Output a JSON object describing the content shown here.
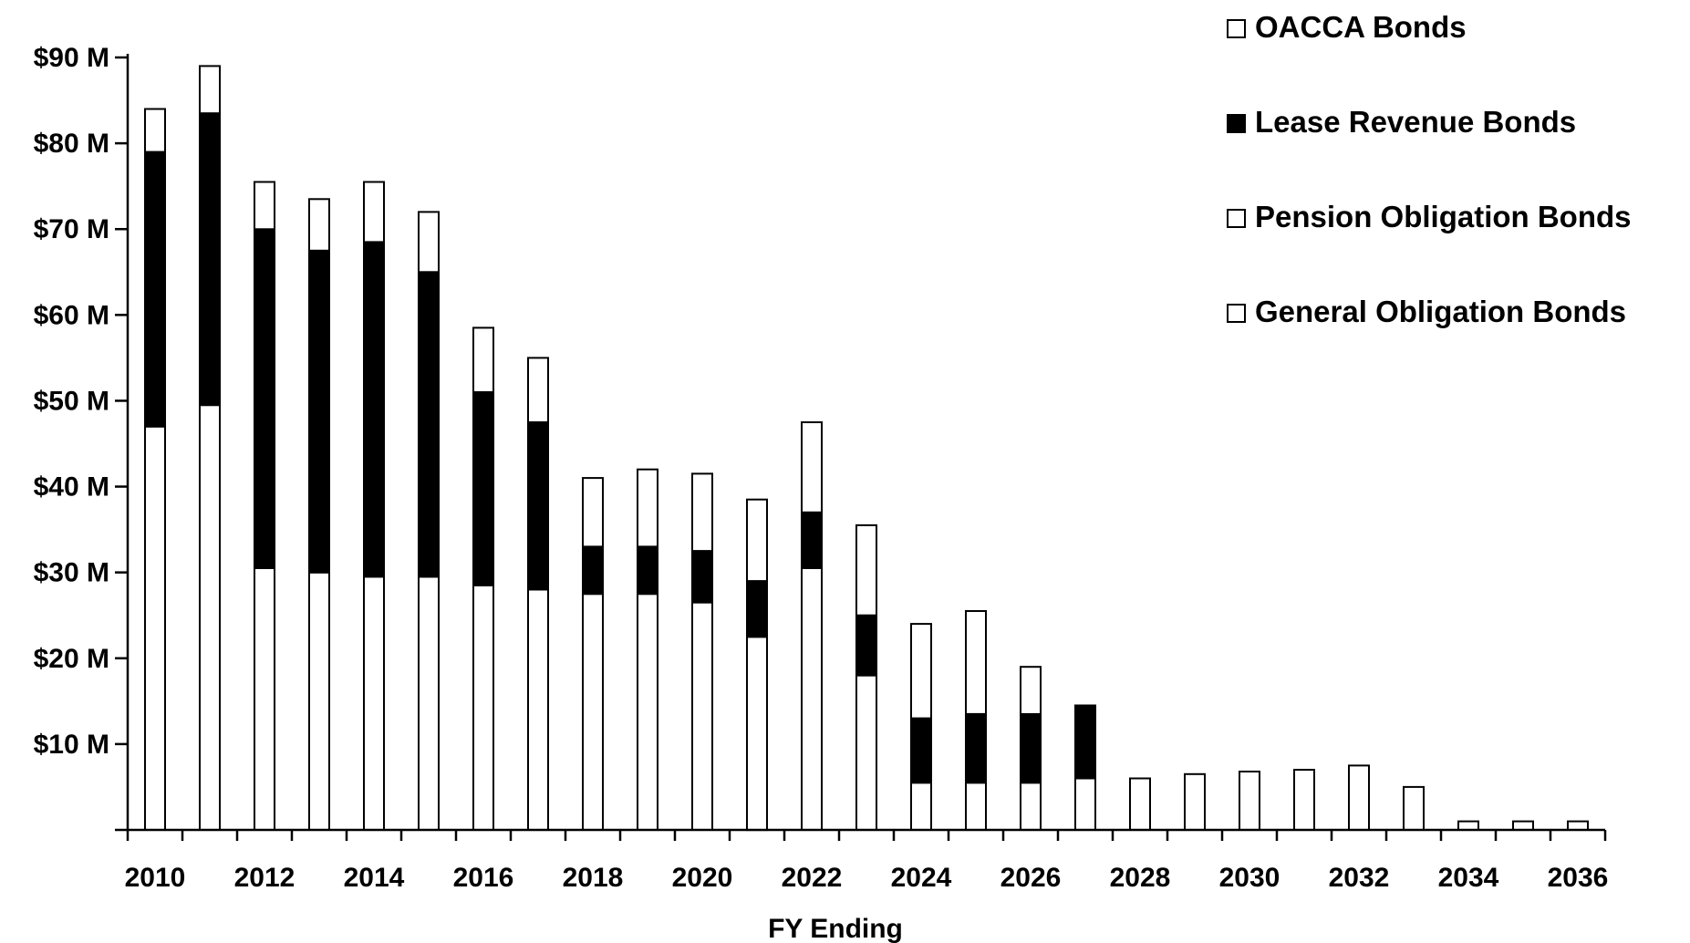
{
  "chart_data": {
    "type": "bar",
    "stacked": true,
    "title": "",
    "xlabel": "FY Ending",
    "ylabel": "",
    "ylim": [
      0,
      90
    ],
    "y_unit": "$M",
    "y_ticks": [
      10,
      20,
      30,
      40,
      50,
      60,
      70,
      80,
      90
    ],
    "y_tick_labels": [
      "$10 M",
      "$20 M",
      "$30 M",
      "$40 M",
      "$50 M",
      "$60 M",
      "$70 M",
      "$80 M",
      "$90 M"
    ],
    "x_tick_labels": [
      "2010",
      "2012",
      "2014",
      "2016",
      "2018",
      "2020",
      "2022",
      "2024",
      "2026",
      "2028",
      "2030",
      "2032",
      "2034",
      "2036"
    ],
    "categories": [
      "2010",
      "2011",
      "2012",
      "2013",
      "2014",
      "2015",
      "2016",
      "2017",
      "2018",
      "2019",
      "2020",
      "2021",
      "2022",
      "2023",
      "2024",
      "2025",
      "2026",
      "2027",
      "2028",
      "2029",
      "2030",
      "2031",
      "2032",
      "2033",
      "2034",
      "2035",
      "2036"
    ],
    "legend_position": "top-right",
    "grid": false,
    "series": [
      {
        "name": "General Obligation Bonds",
        "color": "#ffffff",
        "values": [
          47,
          49.5,
          30.5,
          30,
          29.5,
          29.5,
          28.5,
          28,
          27.5,
          27.5,
          26.5,
          22.5,
          30.5,
          18,
          5.5,
          5.5,
          5.5,
          6,
          6,
          6.5,
          6.8,
          7,
          7.5,
          5,
          1,
          1,
          1
        ]
      },
      {
        "name": "Pension Obligation Bonds",
        "color": "#ffffff",
        "values": [
          0,
          0,
          0,
          0,
          0,
          0,
          0,
          0,
          0,
          0,
          0,
          0,
          0,
          0,
          0,
          0,
          0,
          0,
          0,
          0,
          0,
          0,
          0,
          0,
          0,
          0,
          0
        ]
      },
      {
        "name": "Lease Revenue Bonds",
        "color": "#000000",
        "values": [
          32,
          34,
          39.5,
          37.5,
          39,
          35.5,
          22.5,
          19.5,
          5.5,
          5.5,
          6,
          6.5,
          6.5,
          7,
          7.5,
          8,
          8,
          8.5,
          0,
          0,
          0,
          0,
          0,
          0,
          0,
          0,
          0
        ]
      },
      {
        "name": "OACCA Bonds",
        "color": "#ffffff",
        "values": [
          5,
          5.5,
          5.5,
          6,
          7,
          7,
          7.5,
          7.5,
          8,
          9,
          9,
          9.5,
          10.5,
          10.5,
          11,
          12,
          5.5,
          0,
          0,
          0,
          0,
          0,
          0,
          0,
          0,
          0,
          0
        ]
      }
    ],
    "legend_order": [
      "OACCA Bonds",
      "Lease Revenue Bonds",
      "Pension Obligation Bonds",
      "General Obligation Bonds"
    ]
  }
}
